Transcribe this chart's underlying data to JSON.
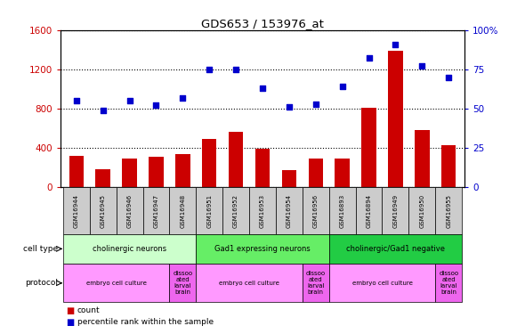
{
  "title": "GDS653 / 153976_at",
  "samples": [
    "GSM16944",
    "GSM16945",
    "GSM16946",
    "GSM16947",
    "GSM16948",
    "GSM16951",
    "GSM16952",
    "GSM16953",
    "GSM16954",
    "GSM16956",
    "GSM16893",
    "GSM16894",
    "GSM16949",
    "GSM16950",
    "GSM16955"
  ],
  "counts": [
    320,
    185,
    295,
    310,
    340,
    490,
    560,
    390,
    175,
    290,
    295,
    810,
    1390,
    580,
    430
  ],
  "percentiles": [
    55,
    49,
    55,
    52,
    57,
    75,
    75,
    63,
    51,
    53,
    64,
    82,
    91,
    77,
    70
  ],
  "bar_color": "#cc0000",
  "dot_color": "#0000cc",
  "ylim_left": [
    0,
    1600
  ],
  "ylim_right": [
    0,
    100
  ],
  "yticks_left": [
    0,
    400,
    800,
    1200,
    1600
  ],
  "ytick_labels_left": [
    "0",
    "400",
    "800",
    "1200",
    "1600"
  ],
  "yticks_right": [
    0,
    25,
    50,
    75,
    100
  ],
  "ytick_labels_right": [
    "0",
    "25",
    "50",
    "75",
    "100%"
  ],
  "cell_type_groups": [
    {
      "label": "cholinergic neurons",
      "start": 0,
      "end": 5,
      "color": "#ccffcc"
    },
    {
      "label": "Gad1 expressing neurons",
      "start": 5,
      "end": 10,
      "color": "#66ee66"
    },
    {
      "label": "cholinergic/Gad1 negative",
      "start": 10,
      "end": 15,
      "color": "#22cc44"
    }
  ],
  "protocol_groups": [
    {
      "label": "embryo cell culture",
      "start": 0,
      "end": 4,
      "color": "#ff99ff"
    },
    {
      "label": "dissoo\nated\nlarval\nbrain",
      "start": 4,
      "end": 5,
      "color": "#ee66ee"
    },
    {
      "label": "embryo cell culture",
      "start": 5,
      "end": 9,
      "color": "#ff99ff"
    },
    {
      "label": "dissoo\nated\nlarval\nbrain",
      "start": 9,
      "end": 10,
      "color": "#ee66ee"
    },
    {
      "label": "embryo cell culture",
      "start": 10,
      "end": 14,
      "color": "#ff99ff"
    },
    {
      "label": "dissoo\nated\nlarval\nbrain",
      "start": 14,
      "end": 15,
      "color": "#ee66ee"
    }
  ]
}
